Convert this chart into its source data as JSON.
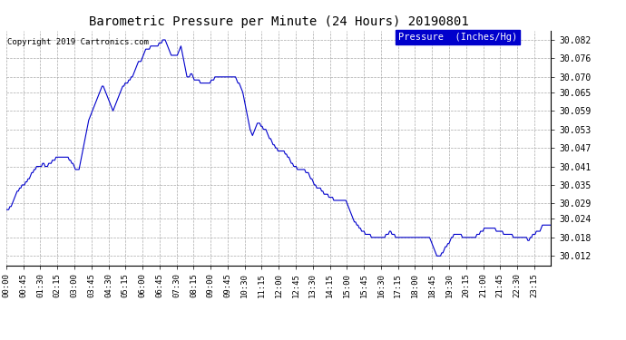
{
  "title": "Barometric Pressure per Minute (24 Hours) 20190801",
  "copyright": "Copyright 2019 Cartronics.com",
  "legend_label": "Pressure  (Inches/Hg)",
  "line_color": "#0000CC",
  "background_color": "#ffffff",
  "grid_color": "#aaaaaa",
  "yticks": [
    30.012,
    30.018,
    30.024,
    30.029,
    30.035,
    30.041,
    30.047,
    30.053,
    30.059,
    30.065,
    30.07,
    30.076,
    30.082
  ],
  "ylim": [
    30.009,
    30.085
  ],
  "xtick_labels": [
    "00:00",
    "00:45",
    "01:30",
    "02:15",
    "03:00",
    "03:45",
    "04:30",
    "05:15",
    "06:00",
    "06:45",
    "07:30",
    "08:15",
    "09:00",
    "09:45",
    "10:30",
    "11:15",
    "12:00",
    "12:45",
    "13:30",
    "14:15",
    "15:00",
    "15:45",
    "16:30",
    "17:15",
    "18:00",
    "18:45",
    "19:30",
    "20:15",
    "21:00",
    "21:45",
    "22:30",
    "23:15"
  ],
  "pressure_data": [
    30.027,
    30.027,
    30.027,
    30.028,
    30.028,
    30.029,
    30.03,
    30.031,
    30.032,
    30.033,
    30.033,
    30.034,
    30.034,
    30.035,
    30.035,
    30.035,
    30.036,
    30.036,
    30.037,
    30.037,
    30.038,
    30.039,
    30.039,
    30.04,
    30.04,
    30.041,
    30.041,
    30.041,
    30.041,
    30.041,
    30.042,
    30.042,
    30.041,
    30.041,
    30.041,
    30.042,
    30.042,
    30.042,
    30.043,
    30.043,
    30.043,
    30.044,
    30.044,
    30.044,
    30.044,
    30.044,
    30.044,
    30.044,
    30.044,
    30.044,
    30.044,
    30.044,
    30.043,
    30.043,
    30.042,
    30.042,
    30.041,
    30.04,
    30.04,
    30.04,
    30.04,
    30.042,
    30.044,
    30.046,
    30.048,
    30.05,
    30.052,
    30.054,
    30.056,
    30.057,
    30.058,
    30.059,
    30.06,
    30.061,
    30.062,
    30.063,
    30.064,
    30.065,
    30.066,
    30.067,
    30.067,
    30.066,
    30.065,
    30.064,
    30.063,
    30.062,
    30.061,
    30.06,
    30.059,
    30.06,
    30.061,
    30.062,
    30.063,
    30.064,
    30.065,
    30.066,
    30.067,
    30.067,
    30.068,
    30.068,
    30.068,
    30.069,
    30.069,
    30.07,
    30.07,
    30.071,
    30.072,
    30.073,
    30.074,
    30.075,
    30.075,
    30.075,
    30.076,
    30.077,
    30.078,
    30.079,
    30.079,
    30.079,
    30.079,
    30.08,
    30.08,
    30.08,
    30.08,
    30.08,
    30.08,
    30.08,
    30.081,
    30.081,
    30.081,
    30.082,
    30.082,
    30.082,
    30.081,
    30.08,
    30.079,
    30.078,
    30.077,
    30.077,
    30.077,
    30.077,
    30.077,
    30.077,
    30.078,
    30.079,
    30.08,
    30.078,
    30.076,
    30.074,
    30.072,
    30.07,
    30.07,
    30.07,
    30.071,
    30.071,
    30.07,
    30.069,
    30.069,
    30.069,
    30.069,
    30.069,
    30.068,
    30.068,
    30.068,
    30.068,
    30.068,
    30.068,
    30.068,
    30.068,
    30.068,
    30.069,
    30.069,
    30.069,
    30.07,
    30.07,
    30.07,
    30.07,
    30.07,
    30.07,
    30.07,
    30.07,
    30.07,
    30.07,
    30.07,
    30.07,
    30.07,
    30.07,
    30.07,
    30.07,
    30.07,
    30.07,
    30.069,
    30.068,
    30.068,
    30.067,
    30.066,
    30.065,
    30.063,
    30.061,
    30.059,
    30.057,
    30.055,
    30.053,
    30.052,
    30.051,
    30.052,
    30.053,
    30.054,
    30.055,
    30.055,
    30.055,
    30.054,
    30.054,
    30.053,
    30.053,
    30.053,
    30.052,
    30.051,
    30.05,
    30.05,
    30.049,
    30.048,
    30.048,
    30.047,
    30.047,
    30.046,
    30.046,
    30.046,
    30.046,
    30.046,
    30.046,
    30.045,
    30.045,
    30.044,
    30.044,
    30.043,
    30.042,
    30.042,
    30.041,
    30.041,
    30.041,
    30.04,
    30.04,
    30.04,
    30.04,
    30.04,
    30.04,
    30.04,
    30.039,
    30.039,
    30.039,
    30.038,
    30.037,
    30.037,
    30.036,
    30.035,
    30.035,
    30.034,
    30.034,
    30.034,
    30.034,
    30.033,
    30.033,
    30.032,
    30.032,
    30.032,
    30.032,
    30.031,
    30.031,
    30.031,
    30.031,
    30.03,
    30.03,
    30.03,
    30.03,
    30.03,
    30.03,
    30.03,
    30.03,
    30.03,
    30.03,
    30.03,
    30.029,
    30.028,
    30.027,
    30.026,
    30.025,
    30.024,
    30.023,
    30.023,
    30.022,
    30.022,
    30.021,
    30.021,
    30.02,
    30.02,
    30.02,
    30.019,
    30.019,
    30.019,
    30.019,
    30.019,
    30.018,
    30.018,
    30.018,
    30.018,
    30.018,
    30.018,
    30.018,
    30.018,
    30.018,
    30.018,
    30.018,
    30.018,
    30.019,
    30.019,
    30.019,
    30.02,
    30.02,
    30.019,
    30.019,
    30.019,
    30.018,
    30.018,
    30.018,
    30.018,
    30.018,
    30.018,
    30.018,
    30.018,
    30.018,
    30.018,
    30.018,
    30.018,
    30.018,
    30.018,
    30.018,
    30.018,
    30.018,
    30.018,
    30.018,
    30.018,
    30.018,
    30.018,
    30.018,
    30.018,
    30.018,
    30.018,
    30.018,
    30.018,
    30.018,
    30.017,
    30.016,
    30.015,
    30.014,
    30.013,
    30.012,
    30.012,
    30.012,
    30.012,
    30.013,
    30.013,
    30.014,
    30.015,
    30.015,
    30.016,
    30.016,
    30.017,
    30.018,
    30.018,
    30.019,
    30.019,
    30.019,
    30.019,
    30.019,
    30.019,
    30.019,
    30.018,
    30.018,
    30.018,
    30.018,
    30.018,
    30.018,
    30.018,
    30.018,
    30.018,
    30.018,
    30.018,
    30.018,
    30.019,
    30.019,
    30.019,
    30.02,
    30.02,
    30.02,
    30.021,
    30.021,
    30.021,
    30.021,
    30.021,
    30.021,
    30.021,
    30.021,
    30.021,
    30.021,
    30.02,
    30.02,
    30.02,
    30.02,
    30.02,
    30.02,
    30.019,
    30.019,
    30.019,
    30.019,
    30.019,
    30.019,
    30.019,
    30.019,
    30.018,
    30.018,
    30.018,
    30.018,
    30.018,
    30.018,
    30.018,
    30.018,
    30.018,
    30.018,
    30.018,
    30.018,
    30.017,
    30.017,
    30.018,
    30.018,
    30.019,
    30.019,
    30.019,
    30.02,
    30.02,
    30.02,
    30.02,
    30.021,
    30.022,
    30.022,
    30.022,
    30.022,
    30.022,
    30.022,
    30.022,
    30.022
  ]
}
